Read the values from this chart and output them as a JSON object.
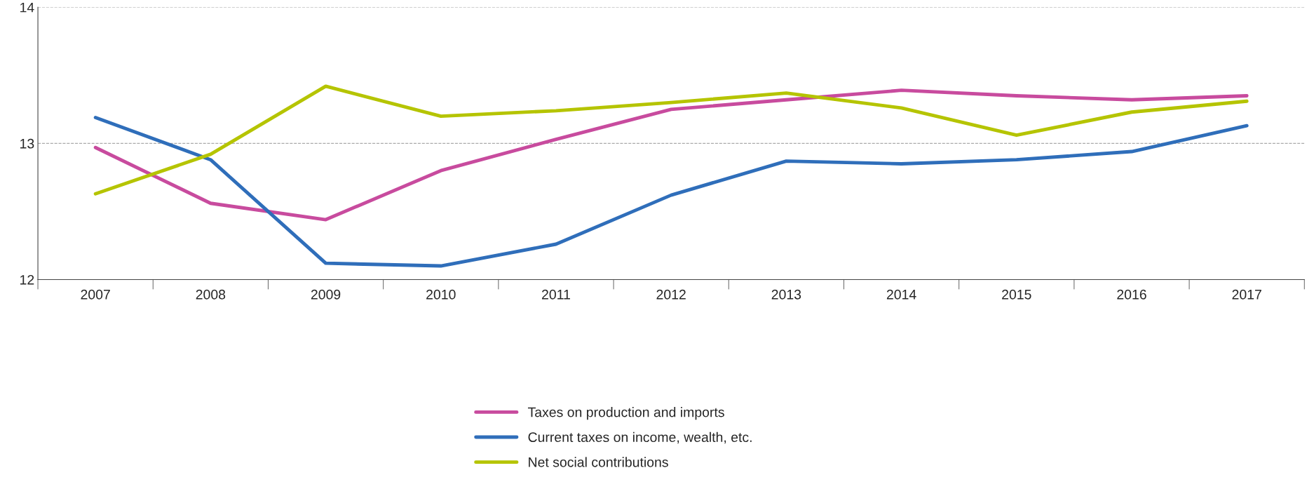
{
  "chart_data": {
    "type": "line",
    "categories": [
      "2007",
      "2008",
      "2009",
      "2010",
      "2011",
      "2012",
      "2013",
      "2014",
      "2015",
      "2016",
      "2017"
    ],
    "series": [
      {
        "name": "Taxes on production and imports",
        "color": "#c84b9e",
        "values": [
          12.97,
          12.56,
          12.44,
          12.8,
          13.03,
          13.25,
          13.32,
          13.39,
          13.35,
          13.32,
          13.35
        ]
      },
      {
        "name": "Current taxes on income, wealth, etc.",
        "color": "#2f6eba",
        "values": [
          13.19,
          12.88,
          12.12,
          12.1,
          12.26,
          12.62,
          12.87,
          12.85,
          12.88,
          12.94,
          13.13
        ]
      },
      {
        "name": "Net social contributions",
        "color": "#b5c400",
        "values": [
          12.63,
          12.92,
          13.42,
          13.2,
          13.24,
          13.3,
          13.37,
          13.26,
          13.06,
          13.23,
          13.31
        ]
      }
    ],
    "ylim": [
      12,
      14
    ],
    "yticks": [
      12,
      13,
      14
    ],
    "grid": "y",
    "legend": "bottom",
    "marker": "none",
    "line_style": "solid"
  }
}
